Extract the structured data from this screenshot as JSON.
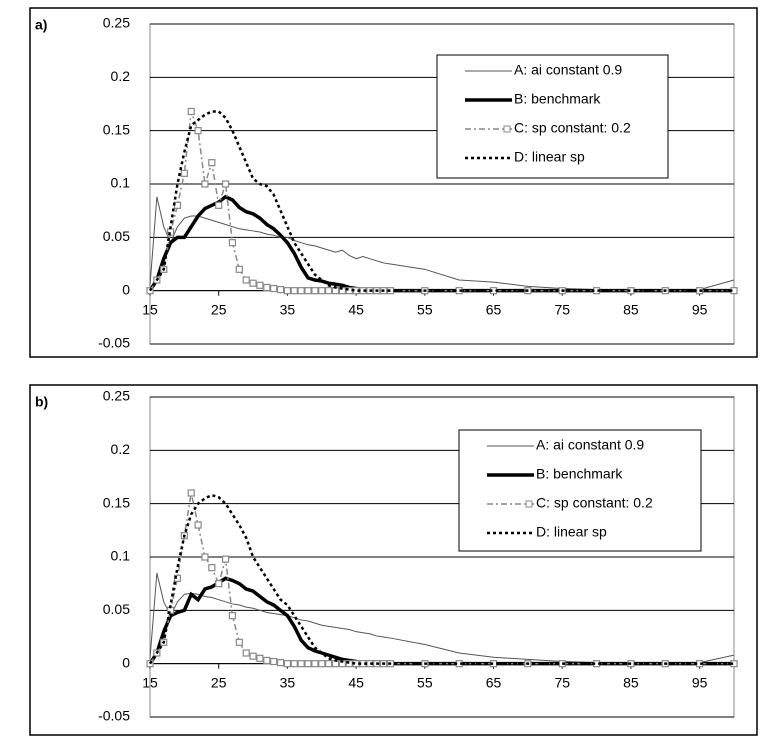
{
  "chart_data": [
    {
      "type": "line",
      "label": "a)",
      "x": [
        15,
        16,
        17,
        18,
        19,
        20,
        21,
        22,
        23,
        24,
        25,
        26,
        27,
        28,
        29,
        30,
        31,
        32,
        33,
        34,
        35,
        36,
        37,
        38,
        39,
        40,
        41,
        42,
        43,
        44,
        45,
        46,
        47,
        48,
        49,
        50,
        55,
        60,
        65,
        70,
        75,
        80,
        85,
        90,
        95,
        100
      ],
      "xlim": [
        15,
        100
      ],
      "xticks": [
        15,
        25,
        35,
        45,
        55,
        65,
        75,
        85,
        95
      ],
      "ylim": [
        -0.05,
        0.25
      ],
      "yticks": [
        -0.05,
        0,
        0.05,
        0.1,
        0.15,
        0.2,
        0.25
      ],
      "grid": true,
      "legend": "upper right",
      "series": [
        {
          "name": "A: ai constant 0.9",
          "color": "#555555",
          "width": 1,
          "dash": "solid",
          "values": [
            0.005,
            0.088,
            0.06,
            0.045,
            0.06,
            0.068,
            0.07,
            0.07,
            0.068,
            0.066,
            0.064,
            0.062,
            0.06,
            0.058,
            0.057,
            0.056,
            0.055,
            0.053,
            0.052,
            0.05,
            0.05,
            0.047,
            0.045,
            0.043,
            0.042,
            0.04,
            0.038,
            0.036,
            0.038,
            0.033,
            0.03,
            0.032,
            0.03,
            0.028,
            0.026,
            0.025,
            0.02,
            0.01,
            0.008,
            0.004,
            0.002,
            0.001,
            0.001,
            0.001,
            0.001,
            0.01
          ]
        },
        {
          "name": "B: benchmark",
          "color": "#000000",
          "width": 3.5,
          "dash": "solid",
          "values": [
            0,
            0.01,
            0.03,
            0.045,
            0.05,
            0.05,
            0.06,
            0.07,
            0.077,
            0.08,
            0.083,
            0.088,
            0.085,
            0.078,
            0.074,
            0.072,
            0.068,
            0.062,
            0.058,
            0.052,
            0.045,
            0.035,
            0.022,
            0.012,
            0.01,
            0.009,
            0.007,
            0.006,
            0.005,
            0.003,
            0.002,
            0.001,
            0.001,
            0,
            0,
            0,
            0,
            0,
            0,
            0,
            0,
            0,
            0,
            0,
            0,
            0
          ]
        },
        {
          "name": "C: sp constant: 0.2",
          "color": "#888888",
          "width": 1.5,
          "dash": "dashdot",
          "marker": "square",
          "values": [
            0,
            0.01,
            0.02,
            0.055,
            0.08,
            0.11,
            0.168,
            0.15,
            0.1,
            0.12,
            0.08,
            0.1,
            0.045,
            0.02,
            0.01,
            0.007,
            0.005,
            0.003,
            0.002,
            0.001,
            0,
            0,
            0,
            0,
            0,
            0,
            0,
            0,
            0,
            0,
            0,
            0,
            0,
            0,
            0,
            0,
            0,
            0,
            0,
            0,
            0,
            0,
            0,
            0,
            0,
            0
          ]
        },
        {
          "name": "D: linear sp",
          "color": "#000000",
          "width": 2.5,
          "dash": "dotted",
          "values": [
            0,
            0.01,
            0.02,
            0.06,
            0.1,
            0.13,
            0.155,
            0.16,
            0.165,
            0.168,
            0.168,
            0.162,
            0.15,
            0.135,
            0.12,
            0.105,
            0.1,
            0.098,
            0.09,
            0.075,
            0.06,
            0.045,
            0.035,
            0.025,
            0.015,
            0.01,
            0.005,
            0.003,
            0.002,
            0.001,
            0,
            0,
            0,
            0,
            0,
            0,
            0,
            0,
            0,
            0,
            0,
            0,
            0,
            0,
            0,
            0
          ]
        }
      ]
    },
    {
      "type": "line",
      "label": "b)",
      "x": [
        15,
        16,
        17,
        18,
        19,
        20,
        21,
        22,
        23,
        24,
        25,
        26,
        27,
        28,
        29,
        30,
        31,
        32,
        33,
        34,
        35,
        36,
        37,
        38,
        39,
        40,
        41,
        42,
        43,
        44,
        45,
        46,
        47,
        48,
        49,
        50,
        55,
        60,
        65,
        70,
        75,
        80,
        85,
        90,
        95,
        100
      ],
      "xlim": [
        15,
        100
      ],
      "xticks": [
        15,
        25,
        35,
        45,
        55,
        65,
        75,
        85,
        95
      ],
      "ylim": [
        -0.05,
        0.25
      ],
      "yticks": [
        -0.05,
        0,
        0.05,
        0.1,
        0.15,
        0.2,
        0.25
      ],
      "grid": true,
      "legend": "upper right",
      "series": [
        {
          "name": "A: ai constant 0.9",
          "color": "#555555",
          "width": 1,
          "dash": "solid",
          "values": [
            0.005,
            0.085,
            0.058,
            0.045,
            0.058,
            0.065,
            0.066,
            0.065,
            0.063,
            0.062,
            0.06,
            0.058,
            0.056,
            0.055,
            0.053,
            0.052,
            0.05,
            0.048,
            0.047,
            0.046,
            0.045,
            0.043,
            0.041,
            0.04,
            0.038,
            0.036,
            0.035,
            0.034,
            0.033,
            0.032,
            0.03,
            0.029,
            0.028,
            0.026,
            0.025,
            0.024,
            0.018,
            0.01,
            0.006,
            0.004,
            0.002,
            0.001,
            0.001,
            0.001,
            0.001,
            0.008
          ]
        },
        {
          "name": "B: benchmark",
          "color": "#000000",
          "width": 3.5,
          "dash": "solid",
          "values": [
            0,
            0.01,
            0.03,
            0.045,
            0.048,
            0.05,
            0.065,
            0.06,
            0.07,
            0.072,
            0.076,
            0.08,
            0.078,
            0.075,
            0.07,
            0.068,
            0.063,
            0.058,
            0.055,
            0.05,
            0.045,
            0.035,
            0.022,
            0.015,
            0.012,
            0.01,
            0.008,
            0.006,
            0.004,
            0.003,
            0.002,
            0.001,
            0,
            0,
            0,
            0,
            0,
            0,
            0,
            0,
            0,
            0,
            0,
            0,
            0,
            0
          ]
        },
        {
          "name": "C: sp constant: 0.2",
          "color": "#888888",
          "width": 1.5,
          "dash": "dashdot",
          "marker": "square",
          "values": [
            0,
            0.01,
            0.02,
            0.05,
            0.08,
            0.12,
            0.16,
            0.13,
            0.1,
            0.09,
            0.075,
            0.098,
            0.045,
            0.02,
            0.01,
            0.007,
            0.005,
            0.003,
            0.002,
            0.001,
            0,
            0,
            0,
            0,
            0,
            0,
            0,
            0,
            0,
            0,
            0,
            0,
            0,
            0,
            0,
            0,
            0,
            0,
            0,
            0,
            0,
            0,
            0,
            0,
            0,
            0
          ]
        },
        {
          "name": "D: linear sp",
          "color": "#000000",
          "width": 2.5,
          "dash": "dotted",
          "values": [
            0,
            0.01,
            0.02,
            0.055,
            0.09,
            0.12,
            0.14,
            0.15,
            0.155,
            0.158,
            0.156,
            0.15,
            0.14,
            0.13,
            0.118,
            0.1,
            0.09,
            0.08,
            0.07,
            0.06,
            0.055,
            0.045,
            0.035,
            0.025,
            0.015,
            0.01,
            0.005,
            0.003,
            0.002,
            0.001,
            0,
            0,
            0,
            0,
            0,
            0,
            0,
            0,
            0,
            0,
            0,
            0,
            0,
            0,
            0,
            0
          ]
        }
      ]
    }
  ]
}
